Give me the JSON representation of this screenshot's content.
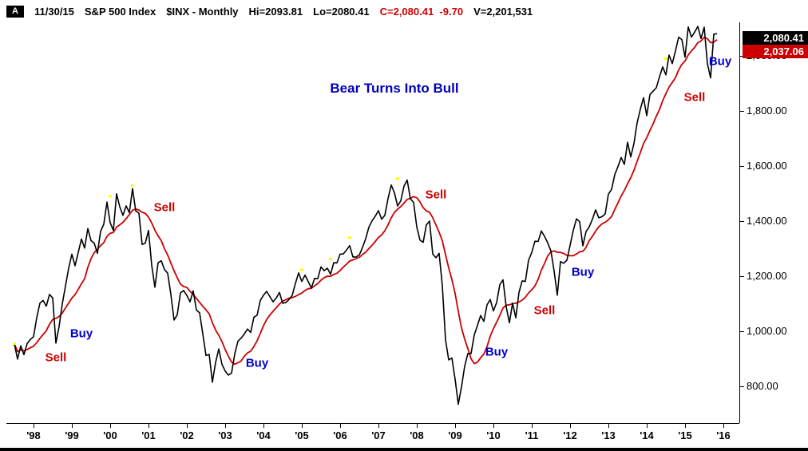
{
  "header": {
    "logo": "A",
    "date": "11/30/15",
    "symbol": "S&P 500 Index",
    "ticker_mode": "$INX - Monthly",
    "hi": "Hi=2093.81",
    "lo": "Lo=2080.41",
    "close": "C=2,080.41  -9.70",
    "volume": "V=2,201,531",
    "close_color": "#cc0000"
  },
  "price_tags": [
    {
      "label": "2,080.41",
      "bg": "#000000",
      "fg": "#ffffff",
      "value": 2080.41
    },
    {
      "label": "2,037.06",
      "bg": "#cc0000",
      "fg": "#ffffff",
      "value": 2037.06
    }
  ],
  "annotations": [
    {
      "text": "Bear Turns Into Bull",
      "color": "#0000bb",
      "x": "2007-06",
      "y": 1880,
      "size": 17
    },
    {
      "text": "Sell",
      "color": "#cc0000",
      "x": "1998-08",
      "y": 905,
      "size": 15
    },
    {
      "text": "Buy",
      "color": "#0000cc",
      "x": "1999-04",
      "y": 990,
      "size": 15
    },
    {
      "text": "Sell",
      "color": "#cc0000",
      "x": "2001-06",
      "y": 1450,
      "size": 15
    },
    {
      "text": "Buy",
      "color": "#0000cc",
      "x": "2003-11",
      "y": 885,
      "size": 15
    },
    {
      "text": "Sell",
      "color": "#cc0000",
      "x": "2008-07",
      "y": 1495,
      "size": 15
    },
    {
      "text": "Buy",
      "color": "#0000cc",
      "x": "2010-02",
      "y": 925,
      "size": 15
    },
    {
      "text": "Sell",
      "color": "#cc0000",
      "x": "2011-05",
      "y": 1075,
      "size": 15
    },
    {
      "text": "Buy",
      "color": "#0000cc",
      "x": "2012-05",
      "y": 1215,
      "size": 15
    },
    {
      "text": "Sell",
      "color": "#cc0000",
      "x": "2015-04",
      "y": 1850,
      "size": 15
    },
    {
      "text": "Buy",
      "color": "#0000cc",
      "x": "2015-12",
      "y": 1980,
      "size": 15
    }
  ],
  "chart_data": {
    "type": "line",
    "title": "Bear Turns Into Bull",
    "xlabel": "",
    "ylabel": "",
    "grid": false,
    "legend": false,
    "x_start": "1997-07",
    "x_ticks": [
      1998,
      1999,
      2000,
      2001,
      2002,
      2003,
      2004,
      2005,
      2006,
      2007,
      2008,
      2009,
      2010,
      2011,
      2012,
      2013,
      2014,
      2015,
      2016
    ],
    "x_tick_labels": [
      "'98",
      "'99",
      "'00",
      "'01",
      "'02",
      "'03",
      "'04",
      "'05",
      "'06",
      "'07",
      "'08",
      "'09",
      "'10",
      "'11",
      "'12",
      "'13",
      "'14",
      "'15",
      "'16"
    ],
    "y_ticks": [
      2000,
      1800,
      1600,
      1400,
      1200,
      1000,
      800
    ],
    "y_tick_labels": [
      "2,000.00",
      "1,800.00",
      "1,600.00",
      "1,400.00",
      "1,200.00",
      "1,000.00",
      "800.00"
    ],
    "ylim": [
      667,
      2122
    ],
    "marker_color": "#ffff00",
    "markers": [
      {
        "x": "1997-07",
        "y": 955
      },
      {
        "x": "2000-01",
        "y": 1490
      },
      {
        "x": "2000-08",
        "y": 1530
      },
      {
        "x": "2005-01",
        "y": 1223
      },
      {
        "x": "2005-10",
        "y": 1262
      },
      {
        "x": "2006-04",
        "y": 1340
      },
      {
        "x": "2007-07",
        "y": 1554
      },
      {
        "x": "2014-07",
        "y": 1990
      }
    ],
    "series": [
      {
        "name": "S&P 500 Index ($INX) monthly close",
        "type": "line",
        "color": "#000000",
        "values": [
          954,
          899,
          947,
          915,
          955,
          970,
          980,
          1049,
          1102,
          1112,
          1091,
          1134,
          1121,
          957,
          1017,
          1099,
          1164,
          1229,
          1280,
          1238,
          1286,
          1335,
          1302,
          1373,
          1329,
          1320,
          1283,
          1363,
          1389,
          1469,
          1394,
          1366,
          1499,
          1452,
          1421,
          1455,
          1431,
          1518,
          1437,
          1429,
          1315,
          1320,
          1366,
          1240,
          1160,
          1249,
          1256,
          1224,
          1211,
          1134,
          1041,
          1060,
          1139,
          1148,
          1130,
          1107,
          1147,
          1077,
          1067,
          990,
          912,
          916,
          815,
          886,
          936,
          880,
          856,
          841,
          848,
          917,
          964,
          975,
          990,
          1008,
          996,
          1051,
          1058,
          1112,
          1131,
          1145,
          1126,
          1107,
          1121,
          1141,
          1102,
          1104,
          1115,
          1130,
          1174,
          1212,
          1181,
          1204,
          1181,
          1157,
          1192,
          1191,
          1234,
          1220,
          1229,
          1207,
          1249,
          1248,
          1280,
          1281,
          1295,
          1311,
          1270,
          1270,
          1277,
          1304,
          1336,
          1378,
          1401,
          1418,
          1438,
          1407,
          1421,
          1482,
          1531,
          1503,
          1455,
          1474,
          1527,
          1549,
          1481,
          1468,
          1379,
          1331,
          1323,
          1386,
          1400,
          1280,
          1267,
          1283,
          1166,
          969,
          896,
          903,
          826,
          735,
          798,
          873,
          919,
          919,
          987,
          1021,
          1057,
          1036,
          1096,
          1115,
          1074,
          1104,
          1169,
          1187,
          1089,
          1031,
          1102,
          1049,
          1141,
          1183,
          1181,
          1258,
          1286,
          1327,
          1326,
          1364,
          1345,
          1321,
          1292,
          1219,
          1131,
          1253,
          1247,
          1258,
          1312,
          1366,
          1408,
          1398,
          1310,
          1362,
          1379,
          1407,
          1441,
          1412,
          1416,
          1426,
          1498,
          1515,
          1569,
          1598,
          1631,
          1606,
          1686,
          1633,
          1682,
          1757,
          1806,
          1848,
          1783,
          1859,
          1872,
          1884,
          1924,
          1960,
          1931,
          2003,
          1972,
          2018,
          2068,
          2059,
          1995,
          2105,
          2068,
          2086,
          2107,
          2063,
          2104,
          1972,
          1920,
          2079,
          2080.41
        ]
      },
      {
        "name": "10-month moving average",
        "type": "line",
        "color": "#cc0000",
        "derived_from": "close",
        "method": "SMA",
        "period": 10,
        "last_value": 2037.06
      }
    ]
  }
}
